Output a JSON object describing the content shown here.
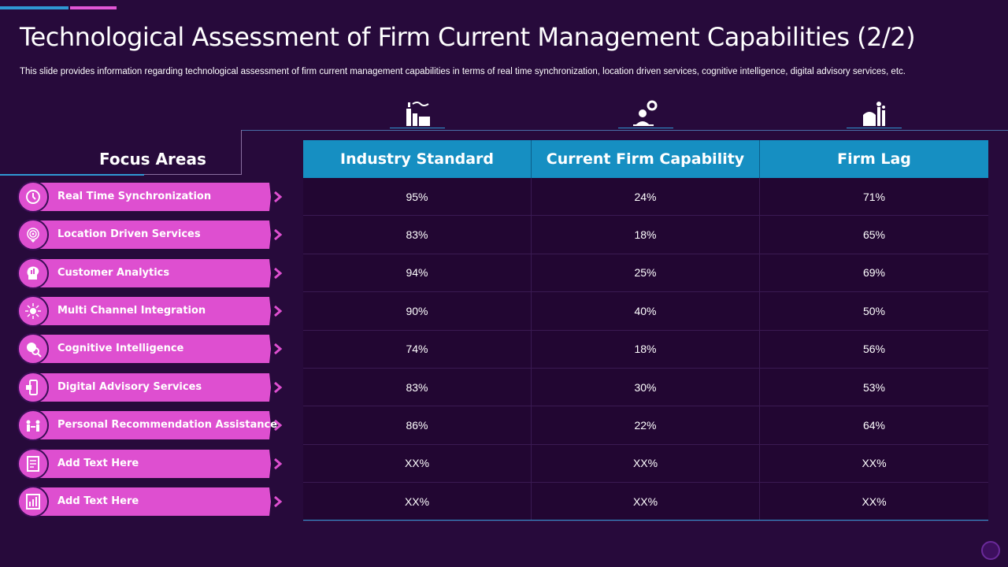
{
  "slide": {
    "title": "Technological Assessment of Firm Current Management Capabilities (2/2)",
    "subtitle": "This slide provides information regarding technological assessment of firm current management capabilities in terms of real time synchronization, location driven services, cognitive intelligence, digital advisory services, etc."
  },
  "focus": {
    "heading": "Focus Areas",
    "items": [
      {
        "label": "Real Time Synchronization",
        "icon": "clock-sync-icon"
      },
      {
        "label": "Location Driven Services",
        "icon": "fingerprint-location-icon"
      },
      {
        "label": "Customer Analytics",
        "icon": "head-analytics-icon"
      },
      {
        "label": "Multi Channel Integration",
        "icon": "network-user-icon"
      },
      {
        "label": "Cognitive Intelligence",
        "icon": "brain-search-icon"
      },
      {
        "label": "Digital Advisory Services",
        "icon": "mobile-advisory-icon"
      },
      {
        "label": "Personal Recommendation  Assistance",
        "icon": "people-meeting-icon"
      },
      {
        "label": "Add Text Here",
        "icon": "document-icon"
      },
      {
        "label": "Add Text Here",
        "icon": "chart-document-icon"
      }
    ]
  },
  "table": {
    "headers": [
      "Industry Standard",
      "Current Firm Capability",
      "Firm Lag"
    ],
    "header_icons": [
      "factory-icon",
      "person-gear-icon",
      "plant-icon"
    ],
    "rows": [
      [
        "95%",
        "24%",
        "71%"
      ],
      [
        "83%",
        "18%",
        "65%"
      ],
      [
        "94%",
        "25%",
        "69%"
      ],
      [
        "90%",
        "40%",
        "50%"
      ],
      [
        "74%",
        "18%",
        "56%"
      ],
      [
        "83%",
        "30%",
        "53%"
      ],
      [
        "86%",
        "22%",
        "64%"
      ],
      [
        "XX%",
        "XX%",
        "XX%"
      ],
      [
        "XX%",
        "XX%",
        "XX%"
      ]
    ]
  },
  "colors": {
    "background": "#270a3b",
    "accent_pink": "#de4fd0",
    "accent_blue": "#168fc2"
  }
}
